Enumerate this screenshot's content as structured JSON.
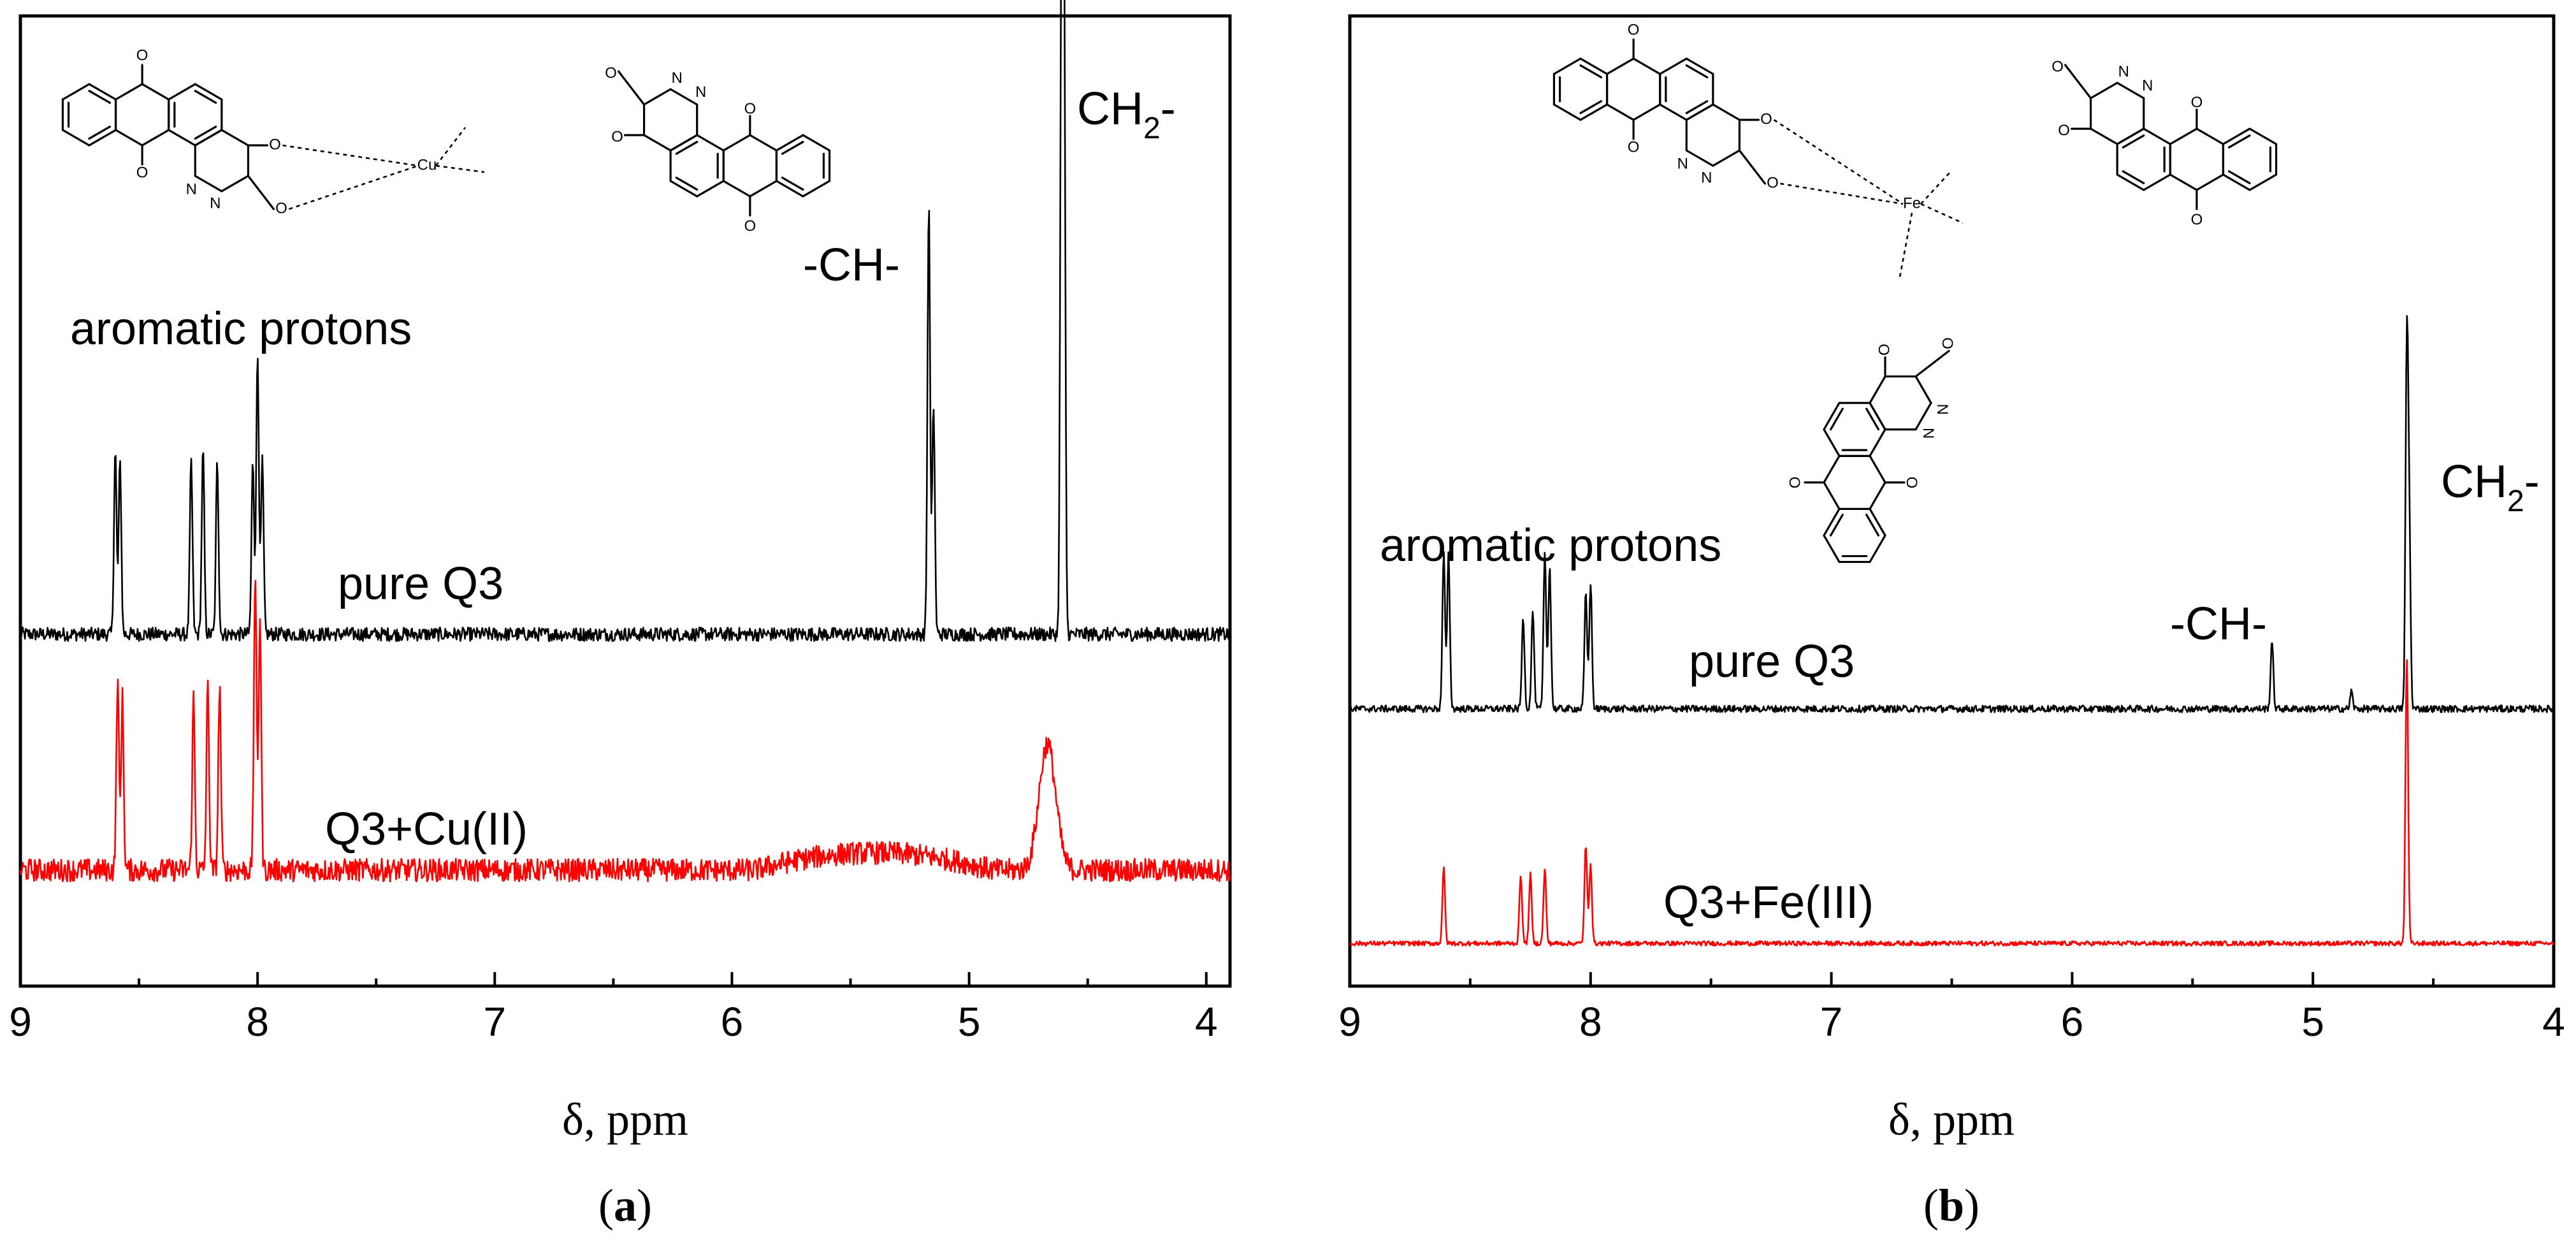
{
  "chart_data": [
    {
      "type": "line",
      "panel_caption": "a",
      "xlabel": "δ, ppm",
      "xlim": [
        9,
        3.9
      ],
      "x_reversed": true,
      "xticks": [
        9,
        8,
        7,
        6,
        5,
        4
      ],
      "y_ticks_shown": false,
      "grid": false,
      "annotations": [
        "aromatic protons",
        "-CH-",
        "CH",
        "2",
        "-"
      ],
      "molecule_metal": "Cu",
      "series": [
        {
          "name": "pure Q3",
          "color": "#000000",
          "baseline": 0,
          "noise": 0.012,
          "peaks": [
            {
              "ppm": 8.6,
              "height": 0.32
            },
            {
              "ppm": 8.58,
              "height": 0.3
            },
            {
              "ppm": 8.28,
              "height": 0.3
            },
            {
              "ppm": 8.23,
              "height": 0.32
            },
            {
              "ppm": 8.17,
              "height": 0.3
            },
            {
              "ppm": 8.02,
              "height": 0.3
            },
            {
              "ppm": 8.0,
              "height": 0.49
            },
            {
              "ppm": 7.98,
              "height": 0.3
            },
            {
              "ppm": 5.17,
              "height": 0.75
            },
            {
              "ppm": 5.15,
              "height": 0.4
            },
            {
              "ppm": 4.61,
              "height": 1.2
            },
            {
              "ppm": 4.6,
              "height": 1.1
            }
          ]
        },
        {
          "name": "Q3+Cu(II)",
          "color": "#ff0000",
          "baseline": 0,
          "noise": 0.02,
          "peaks": [
            {
              "ppm": 8.59,
              "height": 0.33
            },
            {
              "ppm": 8.57,
              "height": 0.3
            },
            {
              "ppm": 8.27,
              "height": 0.3
            },
            {
              "ppm": 8.21,
              "height": 0.32
            },
            {
              "ppm": 8.16,
              "height": 0.32
            },
            {
              "ppm": 8.01,
              "height": 0.52
            },
            {
              "ppm": 7.99,
              "height": 0.45
            },
            {
              "ppm": 4.67,
              "height": 0.22,
              "broad": true
            }
          ],
          "hump": {
            "from": 5.9,
            "to": 4.9,
            "height": 0.03
          }
        }
      ]
    },
    {
      "type": "line",
      "panel_caption": "b",
      "xlabel": "δ, ppm",
      "xlim": [
        9,
        4
      ],
      "x_reversed": true,
      "xticks": [
        9,
        8,
        7,
        6,
        5,
        4
      ],
      "y_ticks_shown": false,
      "grid": false,
      "annotations": [
        "aromatic protons",
        "-CH-",
        "CH",
        "2",
        "-"
      ],
      "molecule_metal": "Fe",
      "series": [
        {
          "name": "pure Q3",
          "color": "#000000",
          "baseline": 0,
          "noise": 0.006,
          "peaks": [
            {
              "ppm": 8.61,
              "height": 0.27
            },
            {
              "ppm": 8.59,
              "height": 0.27
            },
            {
              "ppm": 8.28,
              "height": 0.16
            },
            {
              "ppm": 8.24,
              "height": 0.17
            },
            {
              "ppm": 8.19,
              "height": 0.27
            },
            {
              "ppm": 8.17,
              "height": 0.25
            },
            {
              "ppm": 8.02,
              "height": 0.2
            },
            {
              "ppm": 8.0,
              "height": 0.22
            },
            {
              "ppm": 5.17,
              "height": 0.12
            },
            {
              "ppm": 4.84,
              "height": 0.03
            },
            {
              "ppm": 4.61,
              "height": 0.62
            },
            {
              "ppm": 4.6,
              "height": 0.3
            }
          ]
        },
        {
          "name": "Q3+Fe(III)",
          "color": "#ff0000",
          "baseline": 0,
          "noise": 0.004,
          "peaks": [
            {
              "ppm": 8.61,
              "height": 0.13
            },
            {
              "ppm": 8.29,
              "height": 0.12
            },
            {
              "ppm": 8.25,
              "height": 0.12
            },
            {
              "ppm": 8.19,
              "height": 0.13
            },
            {
              "ppm": 8.02,
              "height": 0.17
            },
            {
              "ppm": 8.0,
              "height": 0.14
            },
            {
              "ppm": 4.61,
              "height": 0.5
            }
          ]
        }
      ]
    }
  ],
  "labels": {
    "annotation_aromatic": "aromatic protons",
    "annotation_ch": "-CH-",
    "annotation_ch2_main": "CH",
    "annotation_ch2_sub": "2",
    "annotation_ch2_tail": "-",
    "xlabel": "δ, ppm",
    "caption_open": "(",
    "caption_close": ")",
    "caption_a": "a",
    "caption_b": "b",
    "series_a_black": "pure Q3",
    "series_a_red": "Q3+Cu(II)",
    "series_b_black": "pure Q3",
    "series_b_red": "Q3+Fe(III)",
    "atom_O": "O",
    "atom_N": "N",
    "metal_cu": "Cu",
    "metal_fe": "Fe"
  }
}
